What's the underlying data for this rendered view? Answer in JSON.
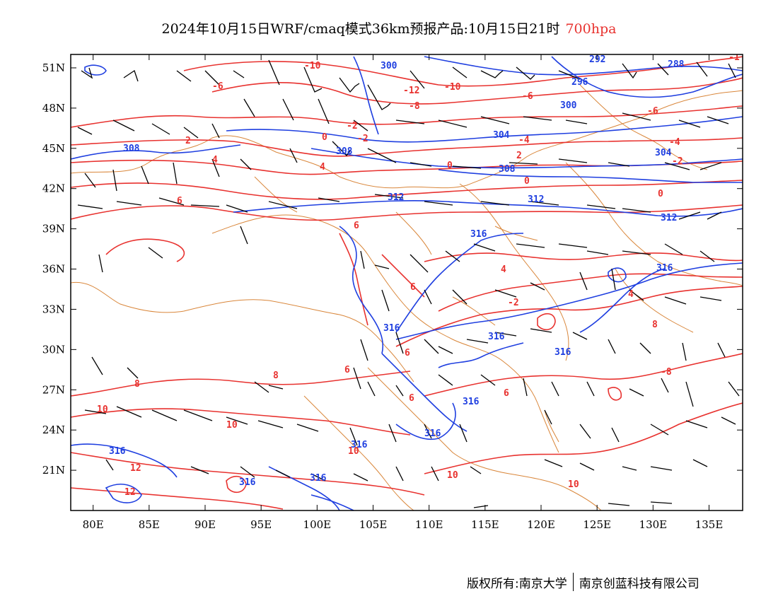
{
  "title": {
    "main": "2024年10月15日WRF/cmaq模式36km预报产品:10月15日21时",
    "level": "700hpa"
  },
  "axes": {
    "lat_labels": [
      "51N",
      "48N",
      "45N",
      "42N",
      "39N",
      "36N",
      "33N",
      "30N",
      "27N",
      "24N",
      "21N"
    ],
    "lat_values": [
      51,
      48,
      45,
      42,
      39,
      36,
      33,
      30,
      27,
      24,
      21
    ],
    "lon_labels": [
      "80E",
      "85E",
      "90E",
      "95E",
      "100E",
      "105E",
      "110E",
      "115E",
      "120E",
      "125E",
      "130E",
      "135E"
    ],
    "lon_values": [
      80,
      85,
      90,
      95,
      100,
      105,
      110,
      115,
      120,
      125,
      130,
      135
    ],
    "lon_range": [
      78,
      138
    ],
    "lat_range": [
      18,
      52
    ]
  },
  "colors": {
    "temperature": "#e8322f",
    "height": "#1f3fe0",
    "boundary": "#d9863a",
    "wind": "#000000"
  },
  "contour_labels": {
    "temperature": [
      "-10",
      "-12",
      "-10",
      "-8",
      "-6",
      "-6",
      "-6",
      "-4",
      "-4",
      "-2",
      "-2",
      "0",
      "0",
      "0",
      "-2",
      "2",
      "2",
      "4",
      "6",
      "6",
      "6",
      "6",
      "6",
      "6",
      "6",
      "4",
      "4",
      "4",
      "8",
      "8",
      "8",
      "10",
      "10",
      "10",
      "10",
      "10",
      "12",
      "12",
      "-8",
      "-2",
      "0",
      "-1"
    ],
    "height": [
      "300",
      "292",
      "288",
      "296",
      "300",
      "304",
      "304",
      "308",
      "308",
      "308",
      "312",
      "312",
      "312",
      "316",
      "316",
      "316",
      "316",
      "316",
      "316",
      "316",
      "316",
      "316",
      "316",
      "316"
    ]
  },
  "footer": {
    "left": "版权所有:南京大学",
    "right": "南京创蓝科技有限公司"
  }
}
